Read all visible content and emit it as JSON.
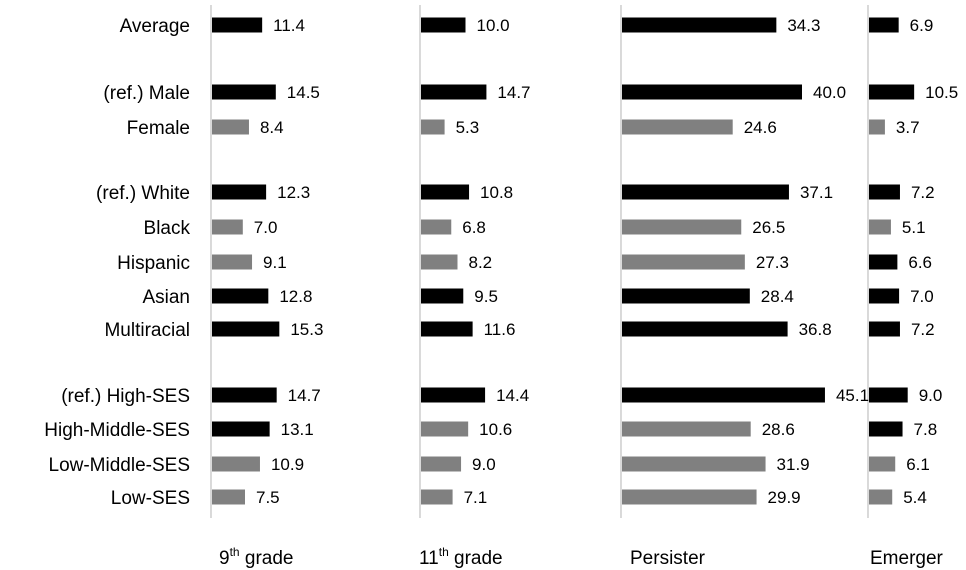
{
  "colors": {
    "reference": "#000000",
    "comparison": "#808080",
    "axis": "#c0c0c0"
  },
  "chart_data": {
    "type": "bar",
    "orientation": "horizontal",
    "categories": [
      "Average",
      "(ref.) Male",
      "Female",
      "(ref.) White",
      "Black",
      "Hispanic",
      "Asian",
      "Multiracial",
      "(ref.) High-SES",
      "High-Middle-SES",
      "Low-Middle-SES",
      "Low-SES"
    ],
    "series": [
      {
        "name": "9th grade",
        "base": "9",
        "sup": "th",
        "tail": " grade",
        "values": [
          11.4,
          14.5,
          8.4,
          12.3,
          7.0,
          9.1,
          12.8,
          15.3,
          14.7,
          13.1,
          10.9,
          7.5
        ],
        "labels": [
          "11.4",
          "14.5",
          "8.4",
          "12.3",
          "7.0",
          "9.1",
          "12.8",
          "15.3",
          "14.7",
          "13.1",
          "10.9",
          "7.5"
        ],
        "shades": [
          "dark",
          "dark",
          "light",
          "dark",
          "light",
          "light",
          "dark",
          "dark",
          "dark",
          "dark",
          "light",
          "light"
        ]
      },
      {
        "name": "11th grade",
        "base": "11",
        "sup": "th",
        "tail": " grade",
        "values": [
          10.0,
          14.7,
          5.3,
          10.8,
          6.8,
          8.2,
          9.5,
          11.6,
          14.4,
          10.6,
          9.0,
          7.1
        ],
        "labels": [
          "10.0",
          "14.7",
          "5.3",
          "10.8",
          "6.8",
          "8.2",
          "9.5",
          "11.6",
          "14.4",
          "10.6",
          "9.0",
          "7.1"
        ],
        "shades": [
          "dark",
          "dark",
          "light",
          "dark",
          "light",
          "light",
          "dark",
          "dark",
          "dark",
          "light",
          "light",
          "light"
        ]
      },
      {
        "name": "Persister",
        "base": "Persister",
        "sup": "",
        "tail": "",
        "values": [
          34.3,
          40.0,
          24.6,
          37.1,
          26.5,
          27.3,
          28.4,
          36.8,
          45.1,
          28.6,
          31.9,
          29.9
        ],
        "labels": [
          "34.3",
          "40.0",
          "24.6",
          "37.1",
          "26.5",
          "27.3",
          "28.4",
          "36.8",
          "45.1",
          "28.6",
          "31.9",
          "29.9"
        ],
        "shades": [
          "dark",
          "dark",
          "light",
          "dark",
          "light",
          "light",
          "dark",
          "dark",
          "dark",
          "light",
          "light",
          "light"
        ]
      },
      {
        "name": "Emerger",
        "base": "Emerger",
        "sup": "",
        "tail": "",
        "values": [
          6.9,
          10.5,
          3.7,
          7.2,
          5.1,
          6.6,
          7.0,
          7.2,
          9.0,
          7.8,
          6.1,
          5.4
        ],
        "labels": [
          "6.9",
          "10.5",
          "3.7",
          "7.2",
          "5.1",
          "6.6",
          "7.0",
          "7.2",
          "9.0",
          "7.8",
          "6.1",
          "5.4"
        ],
        "shades": [
          "dark",
          "dark",
          "light",
          "dark",
          "light",
          "dark",
          "dark",
          "dark",
          "dark",
          "dark",
          "light",
          "light"
        ]
      }
    ],
    "legend": "none",
    "grid": false
  }
}
